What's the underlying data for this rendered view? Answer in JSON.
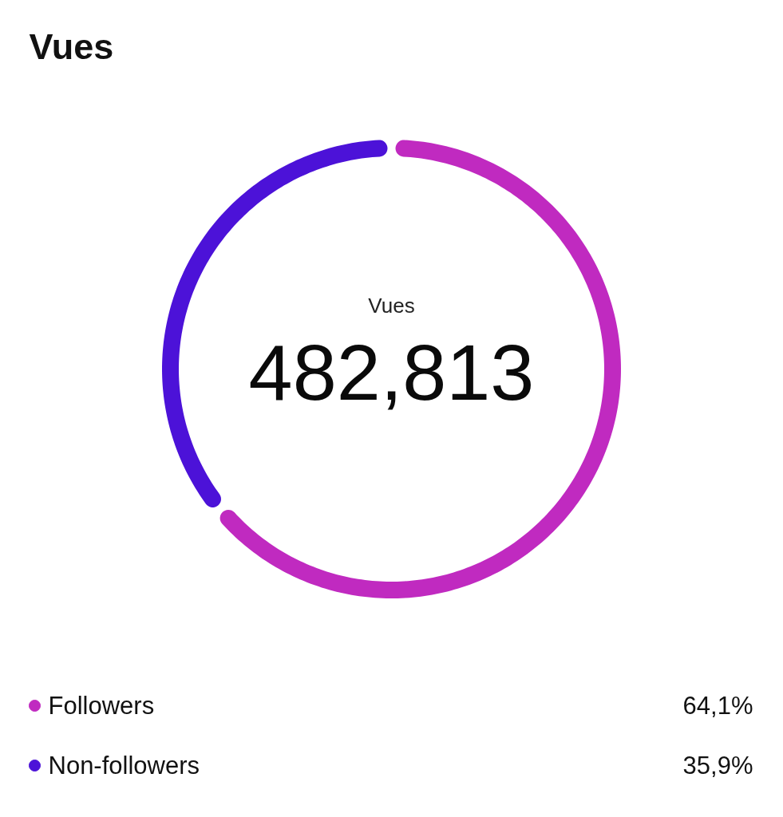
{
  "chart_data": {
    "type": "donut",
    "title": "Vues",
    "categories": [
      "Followers",
      "Non-followers"
    ],
    "values": [
      64.1,
      35.9
    ],
    "colors": [
      "#c02ac0",
      "#4c12d8"
    ],
    "value_labels": [
      "64,1%",
      "35,9%"
    ],
    "annotations": [
      "Vues",
      "482,813"
    ],
    "legend": "bottom"
  }
}
